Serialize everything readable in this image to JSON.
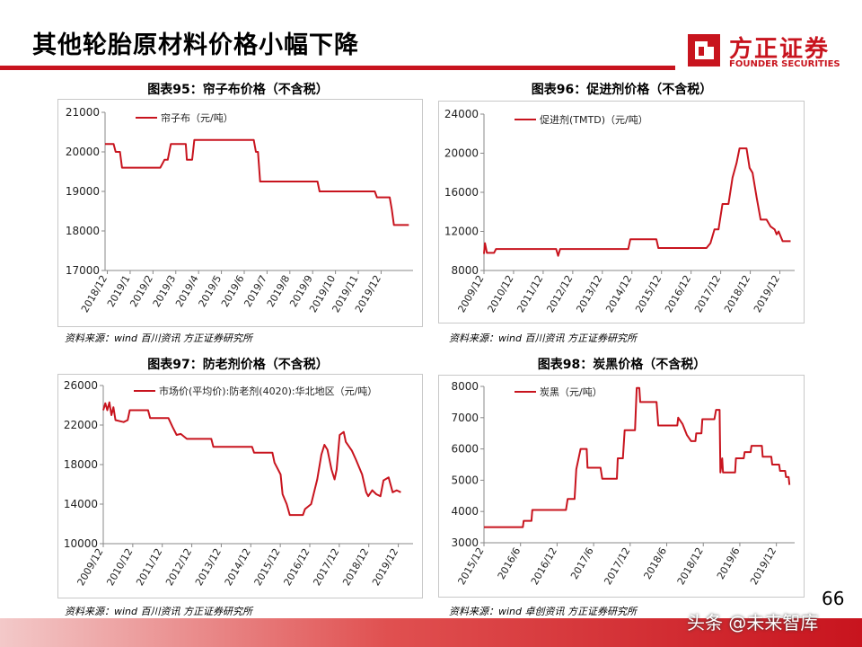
{
  "header": {
    "title": "其他轮胎原材料价格小幅下降",
    "logo_cn": "方正证券",
    "logo_en": "FOUNDER SECURITIES",
    "accent": "#c8141e"
  },
  "charts": [
    {
      "title": "图表95：帘子布价格（不含税）",
      "source": "资料来源：wind 百川资讯 方正证券研究所"
    },
    {
      "title": "图表96：促进剂价格（不含税）",
      "source": "资料来源：wind 百川资讯 方正证券研究所"
    },
    {
      "title": "图表97：防老剂价格（不含税）",
      "source": "资料来源：wind 百川资讯 方正证券研究所"
    },
    {
      "title": "图表98：炭黑价格（不含税）",
      "source": "资料来源：wind 卓创资讯 方正证券研究所"
    }
  ],
  "footer": {
    "page_number": "66",
    "watermark": "头条 @未来智库"
  },
  "chart_data": [
    {
      "type": "line",
      "series": [
        {
          "name": "帘子布（元/吨）",
          "color": "#c8141e",
          "points": [
            [
              0,
              20200
            ],
            [
              0.4,
              20200
            ],
            [
              0.5,
              20000
            ],
            [
              0.7,
              20000
            ],
            [
              0.8,
              19600
            ],
            [
              2.6,
              19600
            ],
            [
              2.8,
              19800
            ],
            [
              2.95,
              19800
            ],
            [
              3.1,
              20200
            ],
            [
              3.8,
              20200
            ],
            [
              3.85,
              19800
            ],
            [
              4.1,
              19800
            ],
            [
              4.2,
              20300
            ],
            [
              7.0,
              20300
            ],
            [
              7.1,
              20000
            ],
            [
              7.2,
              20000
            ],
            [
              7.3,
              19250
            ],
            [
              10.0,
              19250
            ],
            [
              10.1,
              19000
            ],
            [
              12.7,
              19000
            ],
            [
              12.8,
              18850
            ],
            [
              13.4,
              18850
            ],
            [
              13.5,
              18550
            ],
            [
              13.6,
              18150
            ],
            [
              14.3,
              18150
            ]
          ]
        }
      ],
      "x_ticks": [
        "2018/12",
        "2019/1",
        "2019/2",
        "2019/3",
        "2019/4",
        "2019/5",
        "2019/6",
        "2019/7",
        "2019/8",
        "2019/9",
        "2019/10",
        "2019/11",
        "2019/12"
      ],
      "x_range": [
        0,
        14.5
      ],
      "y_ticks": [
        17000,
        18000,
        19000,
        20000,
        21000
      ],
      "ylim": [
        17000,
        21000
      ],
      "grid": false,
      "legend": "top-left"
    },
    {
      "type": "line",
      "series": [
        {
          "name": "促进剂(TMTD)（元/吨）",
          "color": "#c8141e",
          "points": [
            [
              0,
              9700
            ],
            [
              0.05,
              10800
            ],
            [
              0.15,
              9800
            ],
            [
              0.5,
              9800
            ],
            [
              0.6,
              10200
            ],
            [
              3.6,
              10200
            ],
            [
              3.7,
              9500
            ],
            [
              3.8,
              10200
            ],
            [
              7.2,
              10200
            ],
            [
              7.3,
              11200
            ],
            [
              7.8,
              11200
            ],
            [
              8.6,
              11200
            ],
            [
              8.7,
              10300
            ],
            [
              11.1,
              10300
            ],
            [
              11.3,
              10800
            ],
            [
              11.5,
              12200
            ],
            [
              11.7,
              12200
            ],
            [
              11.9,
              14800
            ],
            [
              12.2,
              14800
            ],
            [
              12.4,
              17500
            ],
            [
              12.6,
              19000
            ],
            [
              12.75,
              20500
            ],
            [
              13.1,
              20500
            ],
            [
              13.25,
              18500
            ],
            [
              13.4,
              18000
            ],
            [
              13.6,
              15500
            ],
            [
              13.8,
              13200
            ],
            [
              14.1,
              13200
            ],
            [
              14.3,
              12500
            ],
            [
              14.5,
              12200
            ],
            [
              14.6,
              11700
            ],
            [
              14.7,
              12000
            ],
            [
              14.9,
              11000
            ],
            [
              15.3,
              11000
            ]
          ]
        }
      ],
      "x_ticks": [
        "2009/12",
        "2010/12",
        "2011/12",
        "2012/12",
        "2013/12",
        "2014/12",
        "2015/12",
        "2016/12",
        "2017/12",
        "2018/12",
        "2019/12"
      ],
      "x_range": [
        0,
        15.5
      ],
      "y_ticks": [
        8000,
        12000,
        16000,
        20000,
        24000
      ],
      "ylim": [
        8000,
        24000
      ],
      "grid": false,
      "legend": "top-left"
    },
    {
      "type": "line",
      "series": [
        {
          "name": "市场价(平均价):防老剂(4020):华北地区（元/吨）",
          "color": "#c8141e",
          "points": [
            [
              0,
              23500
            ],
            [
              0.1,
              24200
            ],
            [
              0.2,
              23500
            ],
            [
              0.3,
              24300
            ],
            [
              0.4,
              23000
            ],
            [
              0.5,
              23800
            ],
            [
              0.6,
              22500
            ],
            [
              1.0,
              22300
            ],
            [
              1.2,
              22500
            ],
            [
              1.3,
              23500
            ],
            [
              2.0,
              23500
            ],
            [
              2.2,
              23500
            ],
            [
              2.3,
              22700
            ],
            [
              3.2,
              22700
            ],
            [
              3.4,
              21800
            ],
            [
              3.6,
              21000
            ],
            [
              3.8,
              21100
            ],
            [
              4.1,
              20600
            ],
            [
              5.3,
              20600
            ],
            [
              5.4,
              19800
            ],
            [
              7.3,
              19800
            ],
            [
              7.4,
              19200
            ],
            [
              8.3,
              19200
            ],
            [
              8.4,
              18200
            ],
            [
              8.7,
              17000
            ],
            [
              8.8,
              15000
            ],
            [
              9.0,
              14000
            ],
            [
              9.15,
              12900
            ],
            [
              9.8,
              12900
            ],
            [
              9.9,
              13500
            ],
            [
              10.2,
              14000
            ],
            [
              10.5,
              16500
            ],
            [
              10.7,
              19000
            ],
            [
              10.85,
              20000
            ],
            [
              11.0,
              19500
            ],
            [
              11.2,
              17500
            ],
            [
              11.35,
              16500
            ],
            [
              11.45,
              17500
            ],
            [
              11.6,
              21000
            ],
            [
              11.8,
              21300
            ],
            [
              11.9,
              20300
            ],
            [
              12.2,
              19400
            ],
            [
              12.4,
              18500
            ],
            [
              12.5,
              18000
            ],
            [
              12.7,
              17000
            ],
            [
              12.9,
              15200
            ],
            [
              13.0,
              14800
            ],
            [
              13.2,
              15400
            ],
            [
              13.4,
              15000
            ],
            [
              13.6,
              14800
            ],
            [
              13.75,
              16400
            ],
            [
              14.0,
              16700
            ],
            [
              14.2,
              15200
            ],
            [
              14.4,
              15400
            ],
            [
              14.6,
              15200
            ]
          ]
        }
      ],
      "x_ticks": [
        "2009/12",
        "2010/12",
        "2011/12",
        "2012/12",
        "2013/12",
        "2014/12",
        "2015/12",
        "2016/12",
        "2017/12",
        "2018/12",
        "2019/12"
      ],
      "x_range": [
        0,
        15.2
      ],
      "y_ticks": [
        10000,
        14000,
        18000,
        22000,
        26000
      ],
      "ylim": [
        10000,
        26000
      ],
      "grid": false,
      "legend": "top-left"
    },
    {
      "type": "line",
      "series": [
        {
          "name": "炭黑（元/吨）",
          "color": "#c8141e",
          "points": [
            [
              0,
              3500
            ],
            [
              4.5,
              3500
            ],
            [
              4.6,
              3700
            ],
            [
              5.5,
              3700
            ],
            [
              5.6,
              4050
            ],
            [
              9.5,
              4050
            ],
            [
              9.7,
              4400
            ],
            [
              10.5,
              4400
            ],
            [
              10.7,
              5350
            ],
            [
              11.2,
              6000
            ],
            [
              11.9,
              6000
            ],
            [
              12.0,
              5400
            ],
            [
              13.5,
              5400
            ],
            [
              13.7,
              5050
            ],
            [
              15.4,
              5050
            ],
            [
              15.5,
              5700
            ],
            [
              16.1,
              5700
            ],
            [
              16.3,
              6600
            ],
            [
              17.5,
              6600
            ],
            [
              17.7,
              7950
            ],
            [
              18.0,
              7950
            ],
            [
              18.1,
              7500
            ],
            [
              20.0,
              7500
            ],
            [
              20.2,
              6750
            ],
            [
              22.4,
              6750
            ],
            [
              22.5,
              7000
            ],
            [
              23.0,
              6800
            ],
            [
              23.5,
              6450
            ],
            [
              24.0,
              6250
            ],
            [
              24.5,
              6250
            ],
            [
              24.6,
              6500
            ],
            [
              25.2,
              6500
            ],
            [
              25.3,
              6950
            ],
            [
              26.7,
              6950
            ],
            [
              26.9,
              7250
            ],
            [
              27.3,
              7250
            ],
            [
              27.4,
              5250
            ],
            [
              27.6,
              5700
            ],
            [
              27.7,
              5250
            ],
            [
              29.1,
              5250
            ],
            [
              29.2,
              5700
            ],
            [
              30.1,
              5700
            ],
            [
              30.2,
              5900
            ],
            [
              30.9,
              5900
            ],
            [
              31.0,
              6100
            ],
            [
              32.2,
              6100
            ],
            [
              32.3,
              5750
            ],
            [
              33.3,
              5750
            ],
            [
              33.4,
              5500
            ],
            [
              34.2,
              5500
            ],
            [
              34.3,
              5300
            ],
            [
              34.9,
              5300
            ],
            [
              35.0,
              5100
            ],
            [
              35.3,
              5100
            ],
            [
              35.4,
              4850
            ]
          ]
        }
      ],
      "x_ticks": [
        "2015/12",
        "2016/6",
        "2016/12",
        "2017/6",
        "2017/12",
        "2018/6",
        "2018/12",
        "2019/6",
        "2019/12"
      ],
      "x_range": [
        0,
        36
      ],
      "y_ticks": [
        3000,
        4000,
        5000,
        6000,
        7000,
        8000
      ],
      "ylim": [
        3000,
        8000
      ],
      "grid": false,
      "legend": "top-left"
    }
  ]
}
